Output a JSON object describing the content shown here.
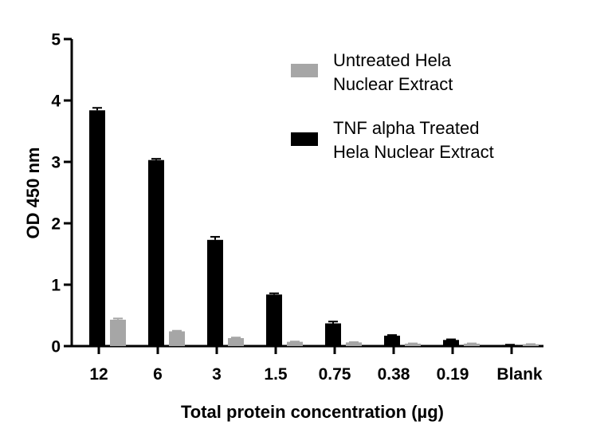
{
  "chart_data": {
    "type": "bar",
    "title": "",
    "xlabel": "Total protein concentration (µg)",
    "ylabel": "OD 450 nm",
    "ylim": [
      0,
      5
    ],
    "yticks": [
      "0",
      "1",
      "2",
      "3",
      "4",
      "5"
    ],
    "categories": [
      "12",
      "6",
      "3",
      "1.5",
      "0.75",
      "0.38",
      "0.19",
      "Blank"
    ],
    "grid": false,
    "legend_position": "top-right",
    "series": [
      {
        "name_lines": [
          "Untreated Hela",
          "Nuclear Extract"
        ],
        "color": "#a6a6a6",
        "values": [
          0.43,
          0.24,
          0.13,
          0.07,
          0.06,
          0.04,
          0.04,
          0.03
        ],
        "errors": [
          0.02,
          0.01,
          0.01,
          0.005,
          0.005,
          0.004,
          0.004,
          0.003
        ]
      },
      {
        "name_lines": [
          "TNF alpha Treated",
          "Hela Nuclear Extract"
        ],
        "color": "#000000",
        "values": [
          3.84,
          3.03,
          1.73,
          0.84,
          0.37,
          0.17,
          0.1,
          0.02
        ],
        "errors": [
          0.04,
          0.02,
          0.05,
          0.02,
          0.03,
          0.01,
          0.01,
          0.003
        ]
      }
    ]
  }
}
